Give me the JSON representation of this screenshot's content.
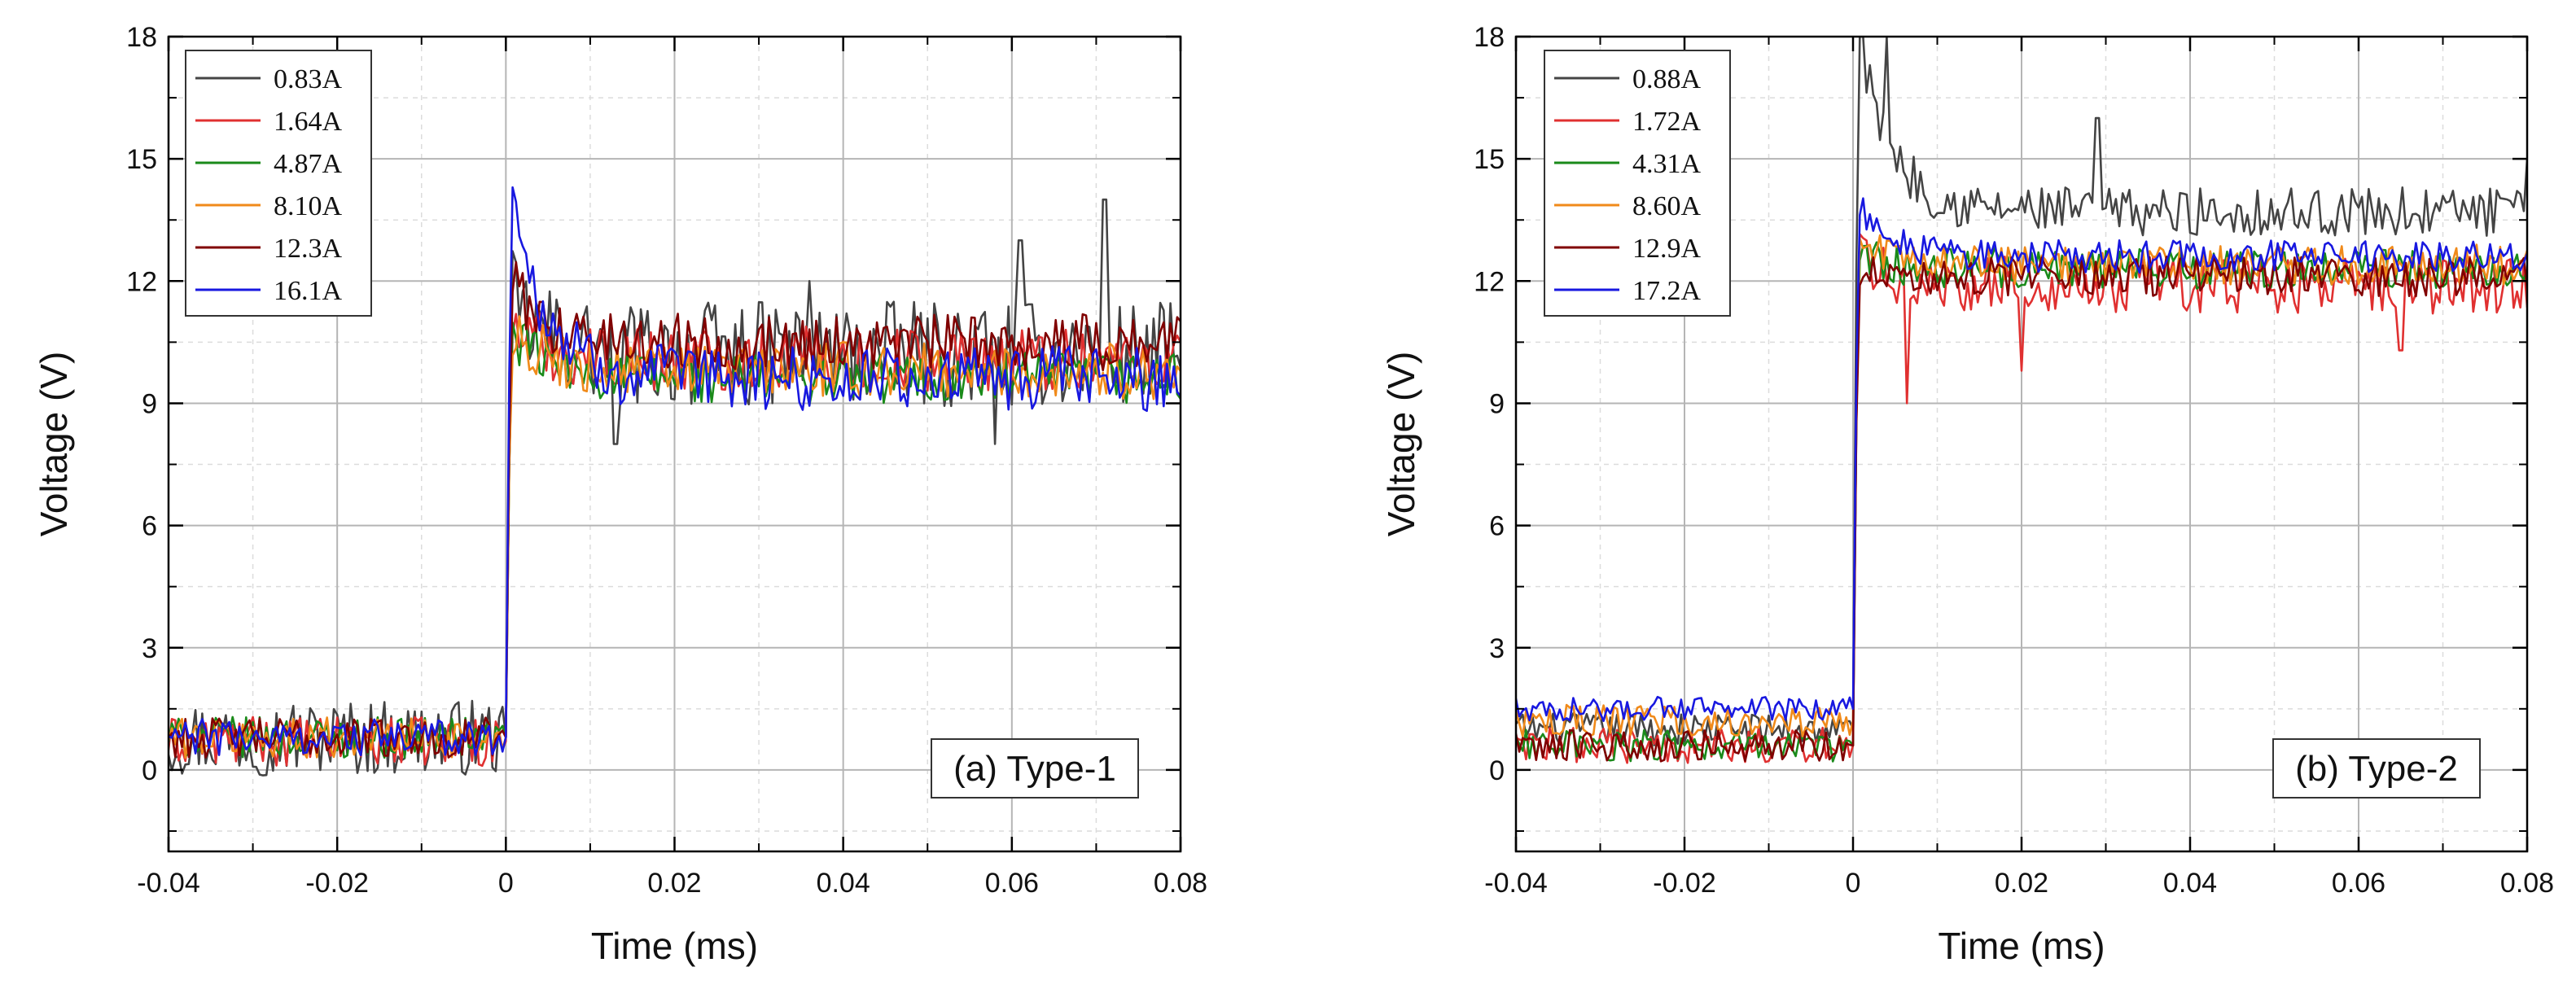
{
  "figure": {
    "colors": {
      "grid_major": "#b5b5b5",
      "grid_minor": "#dcdcdc",
      "axis": "#000000",
      "background": "#ffffff"
    }
  },
  "chart_data": [
    {
      "type": "line",
      "panel_label": "(a) Type-1",
      "xlabel": "Time (ms)",
      "ylabel": "Voltage (V)",
      "xlim": [
        -0.04,
        0.08
      ],
      "ylim": [
        -2,
        18
      ],
      "xticks": [
        -0.04,
        -0.02,
        0,
        0.02,
        0.04,
        0.06,
        0.08
      ],
      "xtick_labels": [
        "-0.04",
        "-0.02",
        "0",
        "0.02",
        "0.04",
        "0.06",
        "0.08"
      ],
      "yticks": [
        0,
        3,
        6,
        9,
        12,
        15,
        18
      ],
      "ytick_labels": [
        "0",
        "3",
        "6",
        "9",
        "12",
        "15",
        "18"
      ],
      "grid": true,
      "legend_position": "top-left",
      "series": [
        {
          "name": "0.83A",
          "color": "#444444",
          "low_level": 0.8,
          "low_noise": 1.9,
          "peak": 11.5,
          "settle": 10.2,
          "high_noise": 2.6,
          "spikes": [
            [
              0.036,
              12.0
            ],
            [
              0.061,
              13.0
            ],
            [
              0.071,
              14.0
            ],
            [
              0.013,
              8.0
            ],
            [
              0.058,
              8.0
            ]
          ]
        },
        {
          "name": "1.64A",
          "color": "#e03030",
          "low_level": 0.7,
          "low_noise": 1.2,
          "peak": 11.0,
          "settle": 10.1,
          "high_noise": 1.6,
          "spikes": []
        },
        {
          "name": "4.87A",
          "color": "#1a8a1a",
          "low_level": 0.8,
          "low_noise": 1.0,
          "peak": 10.8,
          "settle": 9.6,
          "high_noise": 1.3,
          "spikes": []
        },
        {
          "name": "8.10A",
          "color": "#f08a1a",
          "low_level": 0.8,
          "low_noise": 1.0,
          "peak": 10.9,
          "settle": 9.8,
          "high_noise": 1.4,
          "spikes": []
        },
        {
          "name": "12.3A",
          "color": "#800000",
          "low_level": 0.8,
          "low_noise": 1.0,
          "peak": 12.0,
          "settle": 10.5,
          "high_noise": 1.4,
          "spikes": []
        },
        {
          "name": "16.1A",
          "color": "#1818e0",
          "low_level": 0.8,
          "low_noise": 0.9,
          "peak": 14.2,
          "settle": 9.6,
          "high_noise": 1.6,
          "spikes": []
        }
      ]
    },
    {
      "type": "line",
      "panel_label": "(b) Type-2",
      "xlabel": "Time (ms)",
      "ylabel": "Voltage (V)",
      "xlim": [
        -0.04,
        0.08
      ],
      "ylim": [
        -2,
        18
      ],
      "xticks": [
        -0.04,
        -0.02,
        0,
        0.02,
        0.04,
        0.06,
        0.08
      ],
      "xtick_labels": [
        "-0.04",
        "-0.02",
        "0",
        "0.02",
        "0.04",
        "0.06",
        "0.08"
      ],
      "yticks": [
        0,
        3,
        6,
        9,
        12,
        15,
        18
      ],
      "ytick_labels": [
        "0",
        "3",
        "6",
        "9",
        "12",
        "15",
        "18"
      ],
      "grid": true,
      "legend_position": "top-left",
      "series": [
        {
          "name": "0.88A",
          "color": "#444444",
          "low_level": 1.0,
          "low_noise": 0.8,
          "peak": 18.0,
          "settle": 13.7,
          "high_noise": 1.2,
          "spikes": [
            [
              0.029,
              16.0
            ],
            [
              0.08,
              15.0
            ],
            [
              0.001,
              18.0
            ],
            [
              0.004,
              18.0
            ]
          ]
        },
        {
          "name": "1.72A",
          "color": "#e03030",
          "low_level": 0.6,
          "low_noise": 0.9,
          "peak": 12.5,
          "settle": 11.9,
          "high_noise": 1.4,
          "spikes": [
            [
              0.0065,
              9.0
            ],
            [
              0.02,
              9.8
            ],
            [
              0.065,
              10.3
            ]
          ]
        },
        {
          "name": "4.31A",
          "color": "#1a8a1a",
          "low_level": 0.6,
          "low_noise": 0.8,
          "peak": 12.7,
          "settle": 12.3,
          "high_noise": 1.0,
          "spikes": []
        },
        {
          "name": "8.60A",
          "color": "#f08a1a",
          "low_level": 1.2,
          "low_noise": 0.8,
          "peak": 12.9,
          "settle": 12.4,
          "high_noise": 1.0,
          "spikes": []
        },
        {
          "name": "12.9A",
          "color": "#800000",
          "low_level": 0.6,
          "low_noise": 0.8,
          "peak": 12.4,
          "settle": 12.1,
          "high_noise": 1.0,
          "spikes": []
        },
        {
          "name": "17.2A",
          "color": "#1818e0",
          "low_level": 1.5,
          "low_noise": 0.6,
          "peak": 13.8,
          "settle": 12.6,
          "high_noise": 0.8,
          "spikes": []
        }
      ]
    }
  ]
}
